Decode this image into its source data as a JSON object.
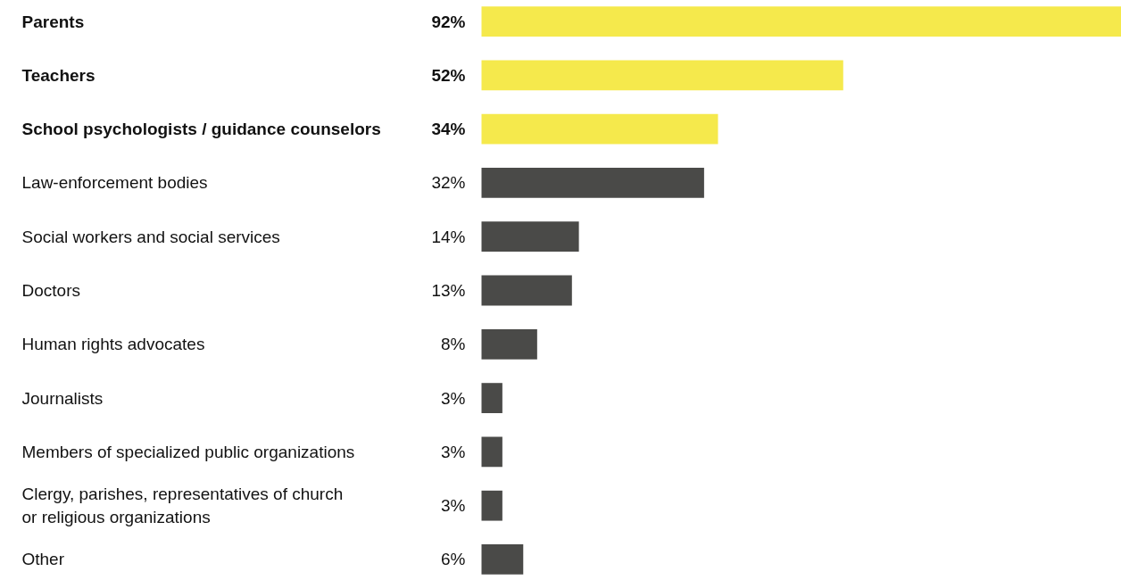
{
  "chart_data": {
    "type": "bar",
    "orientation": "horizontal",
    "tick_labels": false,
    "grid": false,
    "categories": [
      "Parents",
      "Teachers",
      "School psychologists / guidance counselors",
      "Law-enforcement bodies",
      "Social workers and social services",
      "Doctors",
      "Human rights advocates",
      "Journalists",
      "Members of specialized public organizations",
      "Clergy, parishes, representatives of church\nor religious organizations",
      "Other"
    ],
    "values": [
      92,
      52,
      34,
      32,
      14,
      13,
      8,
      3,
      3,
      3,
      6
    ],
    "value_labels": [
      "92%",
      "52%",
      "34%",
      "32%",
      "14%",
      "13%",
      "8%",
      "3%",
      "3%",
      "3%",
      "6%"
    ],
    "colors": [
      "#f5e94c",
      "#f5e94c",
      "#f5e94c",
      "#4a4a48",
      "#4a4a48",
      "#4a4a48",
      "#4a4a48",
      "#4a4a48",
      "#4a4a48",
      "#4a4a48",
      "#4a4a48"
    ]
  }
}
